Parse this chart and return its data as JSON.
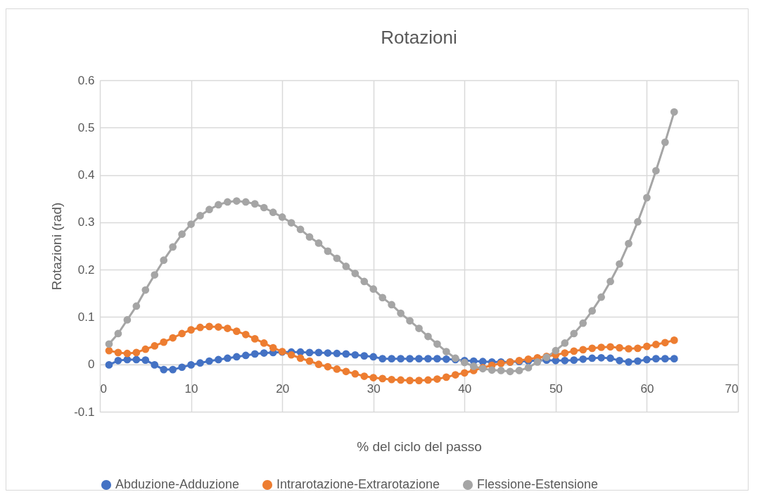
{
  "chart_data": {
    "type": "line",
    "title": "Rotazioni",
    "xlabel": "% del ciclo del passo",
    "ylabel": "Rotazioni (rad)",
    "x": [
      1,
      2,
      3,
      4,
      5,
      6,
      7,
      8,
      9,
      10,
      11,
      12,
      13,
      14,
      15,
      16,
      17,
      18,
      19,
      20,
      21,
      22,
      23,
      24,
      25,
      26,
      27,
      28,
      29,
      30,
      31,
      32,
      33,
      34,
      35,
      36,
      37,
      38,
      39,
      40,
      41,
      42,
      43,
      44,
      45,
      46,
      47,
      48,
      49,
      50,
      51,
      52,
      53,
      54,
      55,
      56,
      57,
      58,
      59,
      60,
      61,
      62,
      63
    ],
    "series": [
      {
        "name": "Abduzione-Adduzione",
        "color": "#4472c4",
        "values": [
          -0.001,
          0.008,
          0.01,
          0.01,
          0.009,
          -0.001,
          -0.011,
          -0.011,
          -0.006,
          -0.001,
          0.003,
          0.007,
          0.01,
          0.013,
          0.016,
          0.019,
          0.022,
          0.024,
          0.025,
          0.026,
          0.026,
          0.026,
          0.025,
          0.025,
          0.024,
          0.023,
          0.022,
          0.02,
          0.018,
          0.016,
          0.012,
          0.012,
          0.012,
          0.012,
          0.012,
          0.012,
          0.012,
          0.011,
          0.01,
          0.008,
          0.007,
          0.006,
          0.005,
          0.005,
          0.005,
          0.006,
          0.007,
          0.008,
          0.009,
          0.008,
          0.008,
          0.009,
          0.011,
          0.013,
          0.014,
          0.013,
          0.008,
          0.005,
          0.007,
          0.01,
          0.012,
          0.012,
          0.012
        ]
      },
      {
        "name": "Intrarotazione-Extrarotazione",
        "color": "#ed7d31",
        "values": [
          0.029,
          0.025,
          0.023,
          0.025,
          0.032,
          0.039,
          0.047,
          0.056,
          0.065,
          0.073,
          0.078,
          0.08,
          0.079,
          0.076,
          0.07,
          0.063,
          0.054,
          0.045,
          0.035,
          0.027,
          0.02,
          0.013,
          0.007,
          0.0,
          -0.005,
          -0.01,
          -0.015,
          -0.02,
          -0.025,
          -0.028,
          -0.03,
          -0.032,
          -0.033,
          -0.034,
          -0.034,
          -0.033,
          -0.031,
          -0.027,
          -0.022,
          -0.018,
          -0.013,
          -0.007,
          -0.002,
          0.002,
          0.005,
          0.008,
          0.011,
          0.014,
          0.017,
          0.02,
          0.024,
          0.028,
          0.031,
          0.034,
          0.036,
          0.037,
          0.035,
          0.033,
          0.034,
          0.038,
          0.042,
          0.046,
          0.051
        ]
      },
      {
        "name": "Flessione-Estensione",
        "color": "#a5a5a5",
        "values": [
          0.043,
          0.065,
          0.094,
          0.123,
          0.157,
          0.189,
          0.22,
          0.248,
          0.275,
          0.296,
          0.314,
          0.327,
          0.337,
          0.343,
          0.345,
          0.343,
          0.339,
          0.331,
          0.321,
          0.311,
          0.299,
          0.285,
          0.269,
          0.256,
          0.239,
          0.224,
          0.207,
          0.192,
          0.175,
          0.159,
          0.141,
          0.126,
          0.108,
          0.092,
          0.076,
          0.059,
          0.043,
          0.027,
          0.013,
          0.004,
          -0.004,
          -0.009,
          -0.012,
          -0.013,
          -0.015,
          -0.013,
          -0.007,
          0.005,
          0.015,
          0.029,
          0.045,
          0.065,
          0.087,
          0.113,
          0.142,
          0.175,
          0.212,
          0.255,
          0.301,
          0.352,
          0.409,
          0.469,
          0.533
        ]
      }
    ],
    "xlim": [
      0,
      70
    ],
    "xticks": [
      0,
      10,
      20,
      30,
      40,
      50,
      60,
      70
    ],
    "ylim": [
      -0.1,
      0.6
    ],
    "yticks": [
      -0.1,
      0,
      0.1,
      0.2,
      0.3,
      0.4,
      0.5,
      0.6
    ],
    "grid": true,
    "legend": "bottom",
    "marker": "circle",
    "line_style": "solid"
  }
}
